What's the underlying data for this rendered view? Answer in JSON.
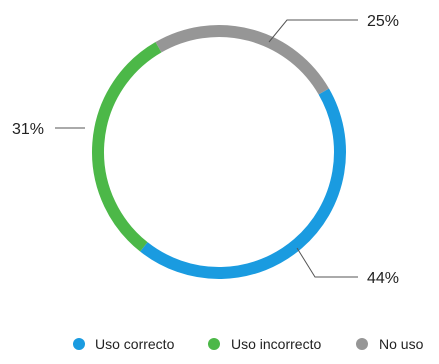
{
  "chart_data": {
    "type": "pie",
    "variant": "donut",
    "categories": [
      "Uso correcto",
      "Uso incorrecto",
      "No uso"
    ],
    "values": [
      44,
      31,
      25
    ],
    "value_labels": [
      "44%",
      "31%",
      "25%"
    ],
    "colors": [
      "#1a9be0",
      "#4cb848",
      "#969696"
    ],
    "legend": {
      "placement": "bottom"
    },
    "title": ""
  }
}
